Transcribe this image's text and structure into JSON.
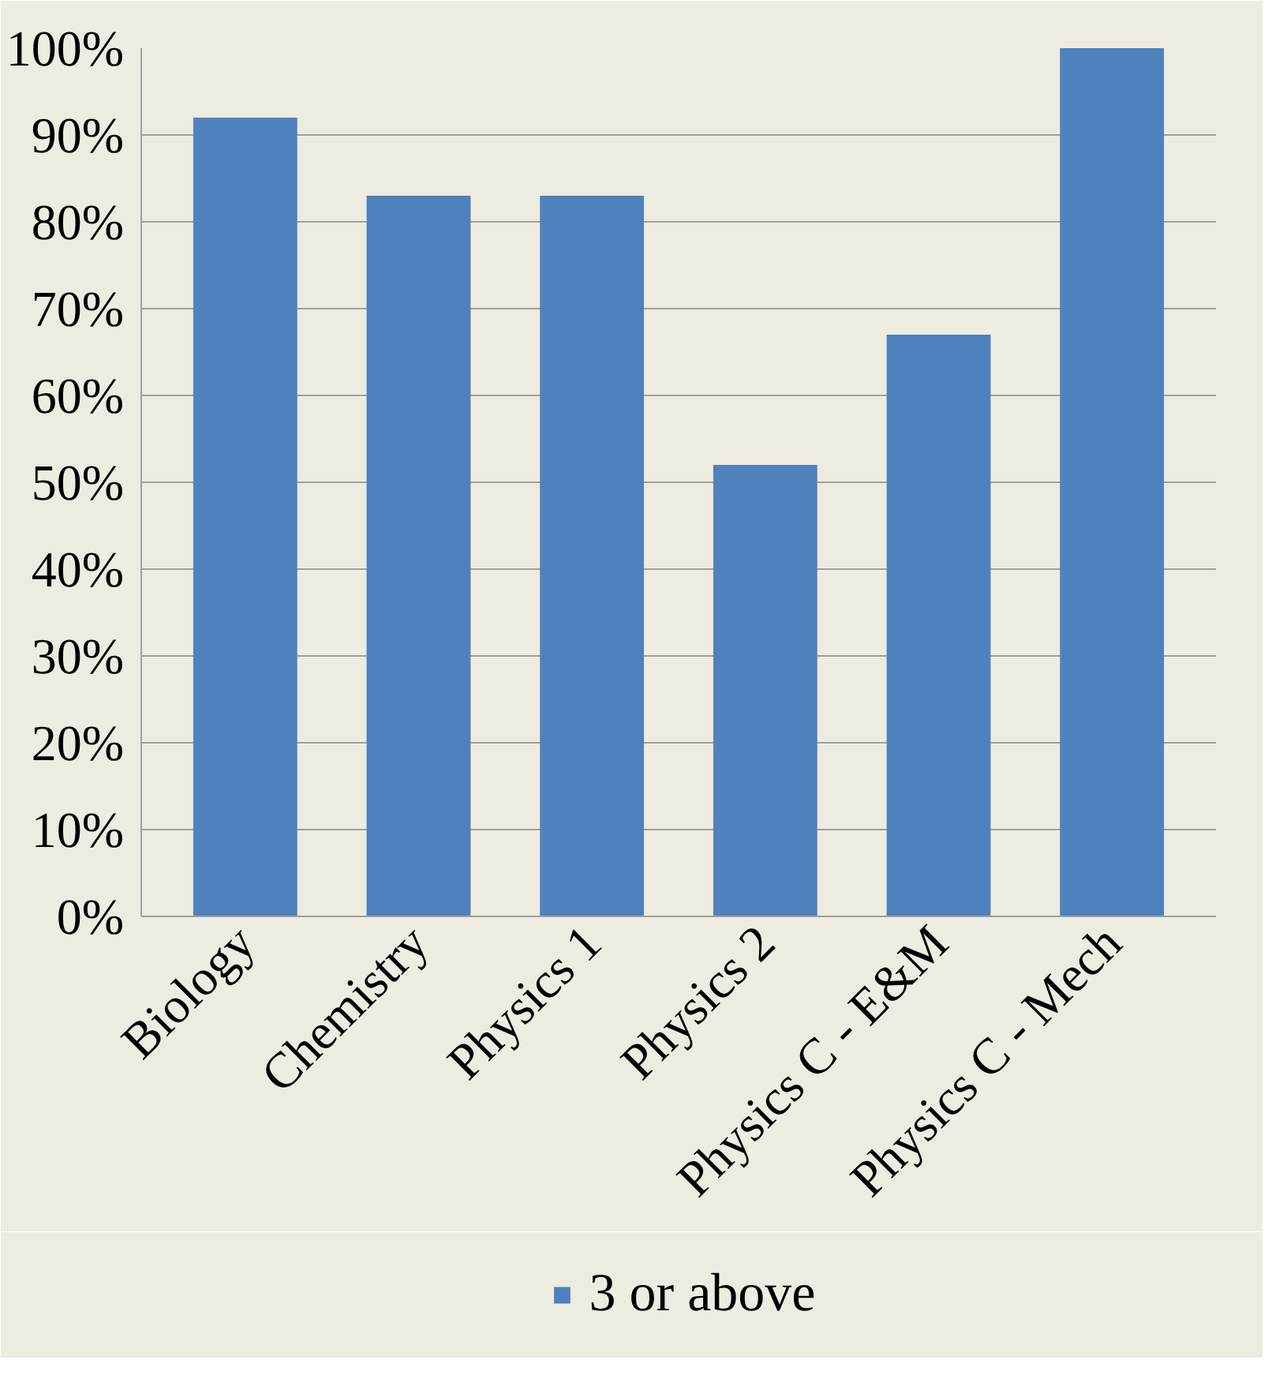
{
  "chart_data": {
    "type": "bar",
    "categories": [
      "Biology",
      "Chemistry",
      "Physics 1",
      "Physics 2",
      "Physics C - E&M",
      "Physics C - Mech"
    ],
    "series": [
      {
        "name": "3 or above",
        "color": "#4f81bd",
        "values": [
          92,
          83,
          83,
          52,
          67,
          100
        ]
      }
    ],
    "ylim": [
      0,
      100
    ],
    "yticks": [
      {
        "value": 0,
        "label": "0%"
      },
      {
        "value": 10,
        "label": "10%"
      },
      {
        "value": 20,
        "label": "20%"
      },
      {
        "value": 30,
        "label": "30%"
      },
      {
        "value": 40,
        "label": "40%"
      },
      {
        "value": 50,
        "label": "50%"
      },
      {
        "value": 60,
        "label": "60%"
      },
      {
        "value": 70,
        "label": "70%"
      },
      {
        "value": 80,
        "label": "80%"
      },
      {
        "value": 90,
        "label": "90%"
      },
      {
        "value": 100,
        "label": "100%"
      }
    ],
    "grid": "y",
    "legend": "bottom"
  }
}
